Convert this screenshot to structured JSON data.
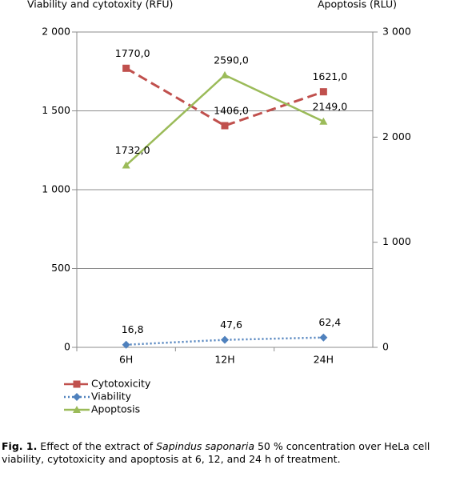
{
  "chart_data": {
    "type": "line",
    "y_label": "Viability and cytotoxity (RFU)",
    "y2_label": "Apoptosis (RLU)",
    "categories": [
      "6H",
      "12H",
      "24H"
    ],
    "ylim": [
      0,
      2000
    ],
    "yticks": [
      0,
      500,
      {
        "value": 1000,
        "label": "1 000"
      },
      {
        "value": 1500,
        "label": "1 500"
      },
      {
        "value": 2000,
        "label": "2 000"
      }
    ],
    "y2lim": [
      0,
      3000
    ],
    "y2ticks": [
      0,
      {
        "value": 1000,
        "label": "1 000"
      },
      {
        "value": 2000,
        "label": "2 000"
      },
      {
        "value": 3000,
        "label": "3 000"
      }
    ],
    "grid": true,
    "legend": "bottom-left",
    "series": [
      {
        "name": "Cytotoxicity",
        "color": "#c0504d",
        "marker": "square",
        "line_style": "dashed",
        "values": [
          1770,
          1406,
          1621
        ],
        "value_labels": [
          "1770,0",
          "1406,0",
          "1621,0"
        ]
      },
      {
        "name": "Viability",
        "color": "#4f81bd",
        "marker": "diamond",
        "line_style": "dotted",
        "values": [
          16.8,
          47.6,
          62.4
        ],
        "value_labels": [
          "16,8",
          "47,6",
          "62,4"
        ]
      },
      {
        "name": "Apoptosis",
        "color": "#9bbb59",
        "marker": "triangle",
        "line_style": "solid",
        "axis": "y2",
        "values": [
          1732,
          2590,
          2149
        ],
        "value_labels": [
          "1732,0",
          "2590,0",
          "2149,0"
        ]
      }
    ]
  },
  "caption": {
    "label": "Fig. 1.",
    "text_before": " Effect of the extract of ",
    "species": "Sapindus saponaria",
    "text_after": " 50 % concentration over HeLa cell viability, cytotoxicity and apoptosis at 6, 12, and 24 h of treatment."
  }
}
